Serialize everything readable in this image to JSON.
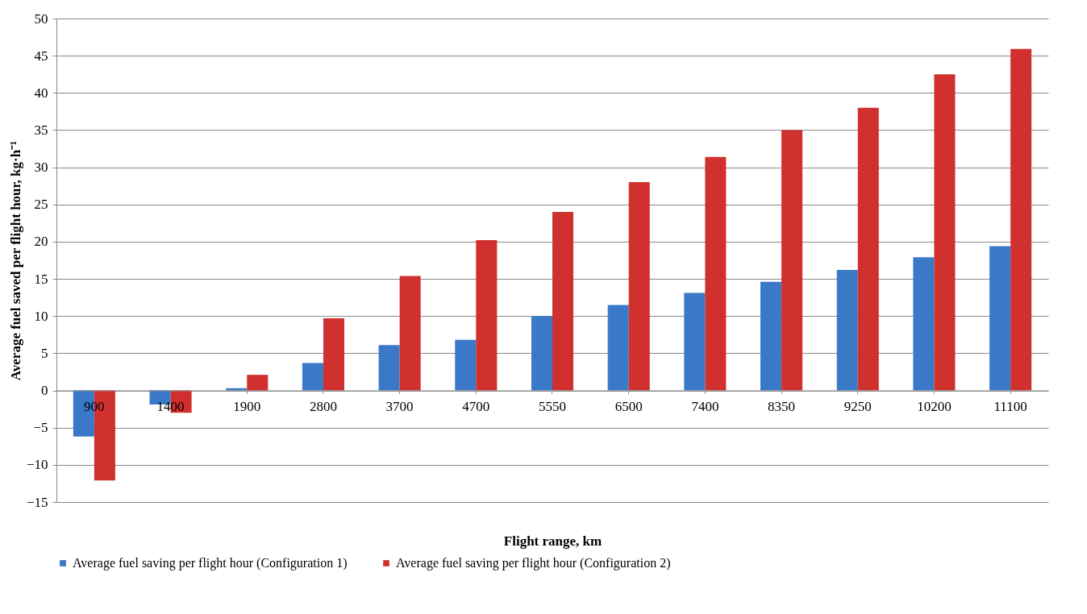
{
  "chart_data": {
    "type": "bar",
    "xlabel": "Flight range, km",
    "ylabel": "Average fuel saved per flight hour, kg·h⁻¹",
    "categories": [
      "900",
      "1400",
      "1900",
      "2800",
      "3700",
      "4700",
      "5550",
      "6500",
      "7400",
      "8350",
      "9250",
      "10200",
      "11100"
    ],
    "series": [
      {
        "name": "Average fuel saving per flight hour (Configuration 1)",
        "color": "#3a78c8",
        "values": [
          -6.2,
          -1.9,
          0.3,
          3.7,
          6.1,
          6.8,
          10,
          11.5,
          13.1,
          14.6,
          16.2,
          17.9,
          19.4
        ]
      },
      {
        "name": "Average fuel saving per flight hour (Configuration 2)",
        "color": "#d0302e",
        "values": [
          -12.1,
          -3,
          2.1,
          9.7,
          15.4,
          20.2,
          24,
          28,
          31.4,
          35,
          38,
          42.5,
          45.9
        ]
      }
    ],
    "ylim": [
      -15,
      50
    ],
    "yticks": [
      -15,
      -10,
      -5,
      0,
      5,
      10,
      15,
      20,
      25,
      30,
      35,
      40,
      45,
      50
    ],
    "grid": "y",
    "legend": "bottom"
  }
}
